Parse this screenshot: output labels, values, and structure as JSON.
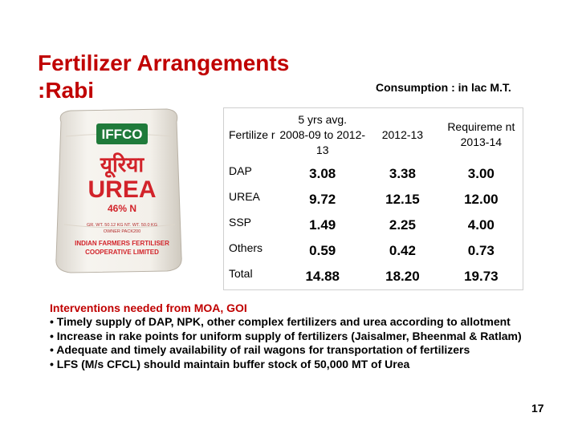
{
  "title": {
    "line1": "Fertilizer Arrangements",
    "line2": ":Rabi"
  },
  "subtitle": "Consumption : in lac  M.T.",
  "bag": {
    "brand": "IFFCO",
    "product_hindi": "यूरिया",
    "product": "UREA",
    "nitrogen": "46% N",
    "small_text": "GR. WT. 50.12 KG  NT. WT. 50.0 KG",
    "small_text2": "OWNER PACK200",
    "maker_line1": "INDIAN FARMERS FERTILISER",
    "maker_line2": "COOPERATIVE LIMITED"
  },
  "table": {
    "headers": {
      "fertilizer": "Fertilize r",
      "avg_line1": "5 yrs avg.",
      "avg_line2": "2008-09 to 2012-13",
      "year": "2012-13",
      "req_line1": "Requireme nt",
      "req_line2": "2013-14"
    },
    "rows": [
      {
        "name": "DAP",
        "avg": "3.08",
        "y2012": "3.38",
        "req": "3.00"
      },
      {
        "name": "UREA",
        "avg": "9.72",
        "y2012": "12.15",
        "req": "12.00"
      },
      {
        "name": "SSP",
        "avg": "1.49",
        "y2012": "2.25",
        "req": "4.00"
      },
      {
        "name": "Others",
        "avg": "0.59",
        "y2012": "0.42",
        "req": "0.73"
      },
      {
        "name": "Total",
        "avg": "14.88",
        "y2012": "18.20",
        "req": "19.73"
      }
    ]
  },
  "notes": {
    "heading": "Interventions needed from MOA, GOI",
    "items": [
      "• Timely supply of DAP, NPK, other complex fertilizers and urea according to allotment",
      "• Increase in rake points for uniform supply of fertilizers (Jaisalmer, Bheenmal & Ratlam)",
      "• Adequate and timely availability of rail wagons for transportation of fertilizers",
      "• LFS (M/s CFCL) should maintain buffer stock of 50,000 MT of Urea"
    ]
  },
  "page_number": "17",
  "colors": {
    "title": "#c00000",
    "bag_text": "#d2232a",
    "bag_body": "#f2efe9"
  }
}
